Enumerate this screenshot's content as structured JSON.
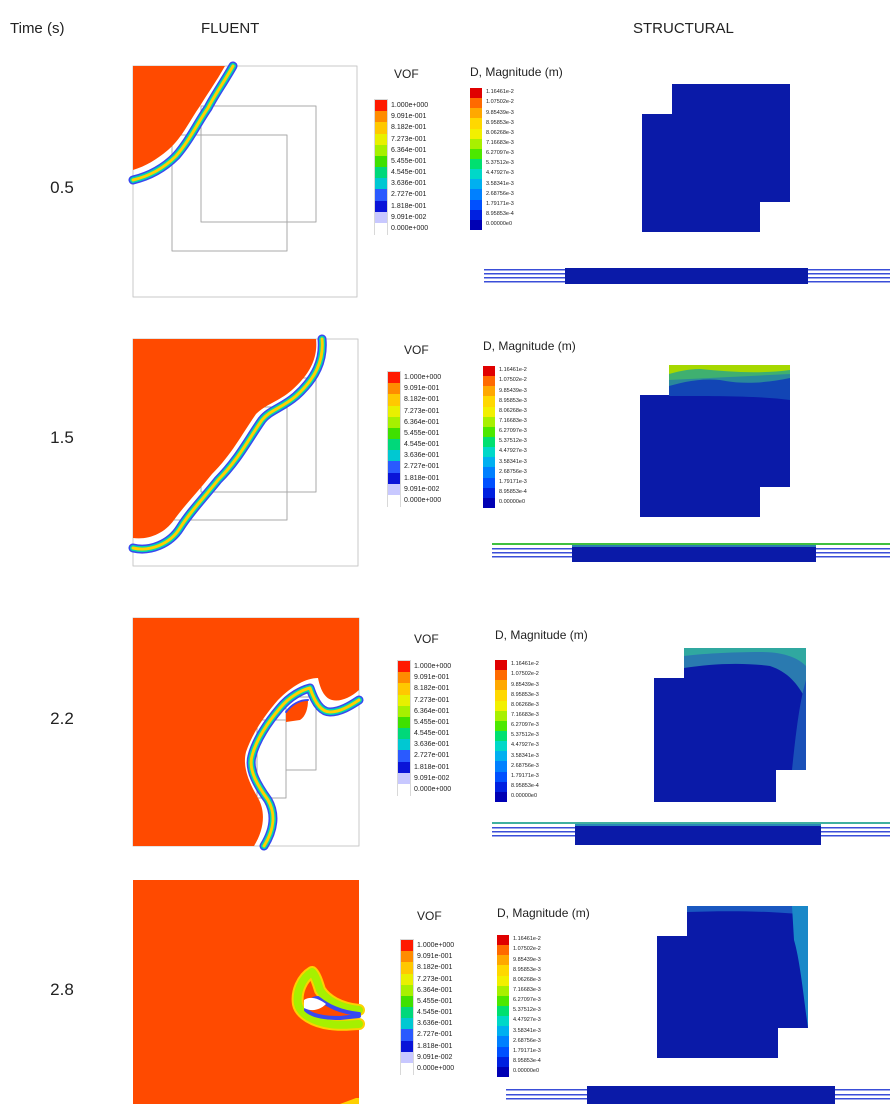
{
  "headers": {
    "time": "Time (s)",
    "fluent": "FLUENT",
    "structural": "STRUCTURAL"
  },
  "rows": [
    {
      "time": "0.5"
    },
    {
      "time": "1.5"
    },
    {
      "time": "2.2"
    },
    {
      "time": "2.8"
    }
  ],
  "vof_legend": {
    "title": "VOF",
    "labels": [
      "1.000e+000",
      "9.091e-001",
      "8.182e-001",
      "7.273e-001",
      "6.364e-001",
      "5.455e-001",
      "4.545e-001",
      "3.636e-001",
      "2.727e-001",
      "1.818e-001",
      "9.091e-002",
      "0.000e+000"
    ]
  },
  "disp_legend": {
    "title": "D, Magnitude (m)",
    "labels": [
      "1.16461e-2",
      "1.07502e-2",
      "9.85439e-3",
      "8.95853e-3",
      "8.06268e-3",
      "7.16683e-3",
      "6.27097e-3",
      "5.37512e-3",
      "4.47927e-3",
      "3.58341e-3",
      "2.68756e-3",
      "1.79171e-3",
      "8.95853e-4",
      "0.00000e0"
    ]
  },
  "colors": {
    "water": "#ff4a00",
    "structure": "#0a1aa8",
    "vof_scale": [
      "#ff1a00",
      "#ff8c00",
      "#ffc800",
      "#e8f000",
      "#a6f000",
      "#3fe000",
      "#00d87a",
      "#00c8d2",
      "#2a5aff",
      "#0a14d8",
      "#c8c8ff",
      "#ffffff"
    ],
    "disp_scale": [
      "#e00000",
      "#ff6a00",
      "#ffa800",
      "#ffd800",
      "#f2f000",
      "#a8f000",
      "#4ce800",
      "#00e070",
      "#00d8c8",
      "#00b0f0",
      "#0080ff",
      "#0050ff",
      "#0020e0",
      "#0000b4"
    ]
  }
}
